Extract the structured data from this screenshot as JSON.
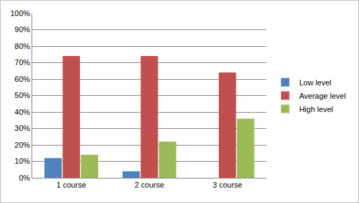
{
  "chart_data": {
    "type": "bar",
    "categories": [
      "1 course",
      "2 course",
      "3 course"
    ],
    "series": [
      {
        "name": "Low level",
        "color": "#4f81bd",
        "values": [
          12,
          4,
          0
        ]
      },
      {
        "name": "Average level",
        "color": "#c0504d",
        "values": [
          74,
          74,
          64
        ]
      },
      {
        "name": "High level",
        "color": "#9bbb59",
        "values": [
          14,
          22,
          36
        ]
      }
    ],
    "ylim": [
      0,
      100
    ],
    "yticks": [
      {
        "value": 0,
        "label": "0%"
      },
      {
        "value": 10,
        "label": "10%"
      },
      {
        "value": 20,
        "label": "20%"
      },
      {
        "value": 30,
        "label": "30%"
      },
      {
        "value": 40,
        "label": "40%"
      },
      {
        "value": 50,
        "label": "50%"
      },
      {
        "value": 60,
        "label": "60%"
      },
      {
        "value": 70,
        "label": "70%"
      },
      {
        "value": 80,
        "label": "80%"
      },
      {
        "value": 90,
        "label": "90%"
      },
      {
        "value": 100,
        "label": "100%"
      }
    ],
    "grid": true,
    "legend": "right"
  }
}
